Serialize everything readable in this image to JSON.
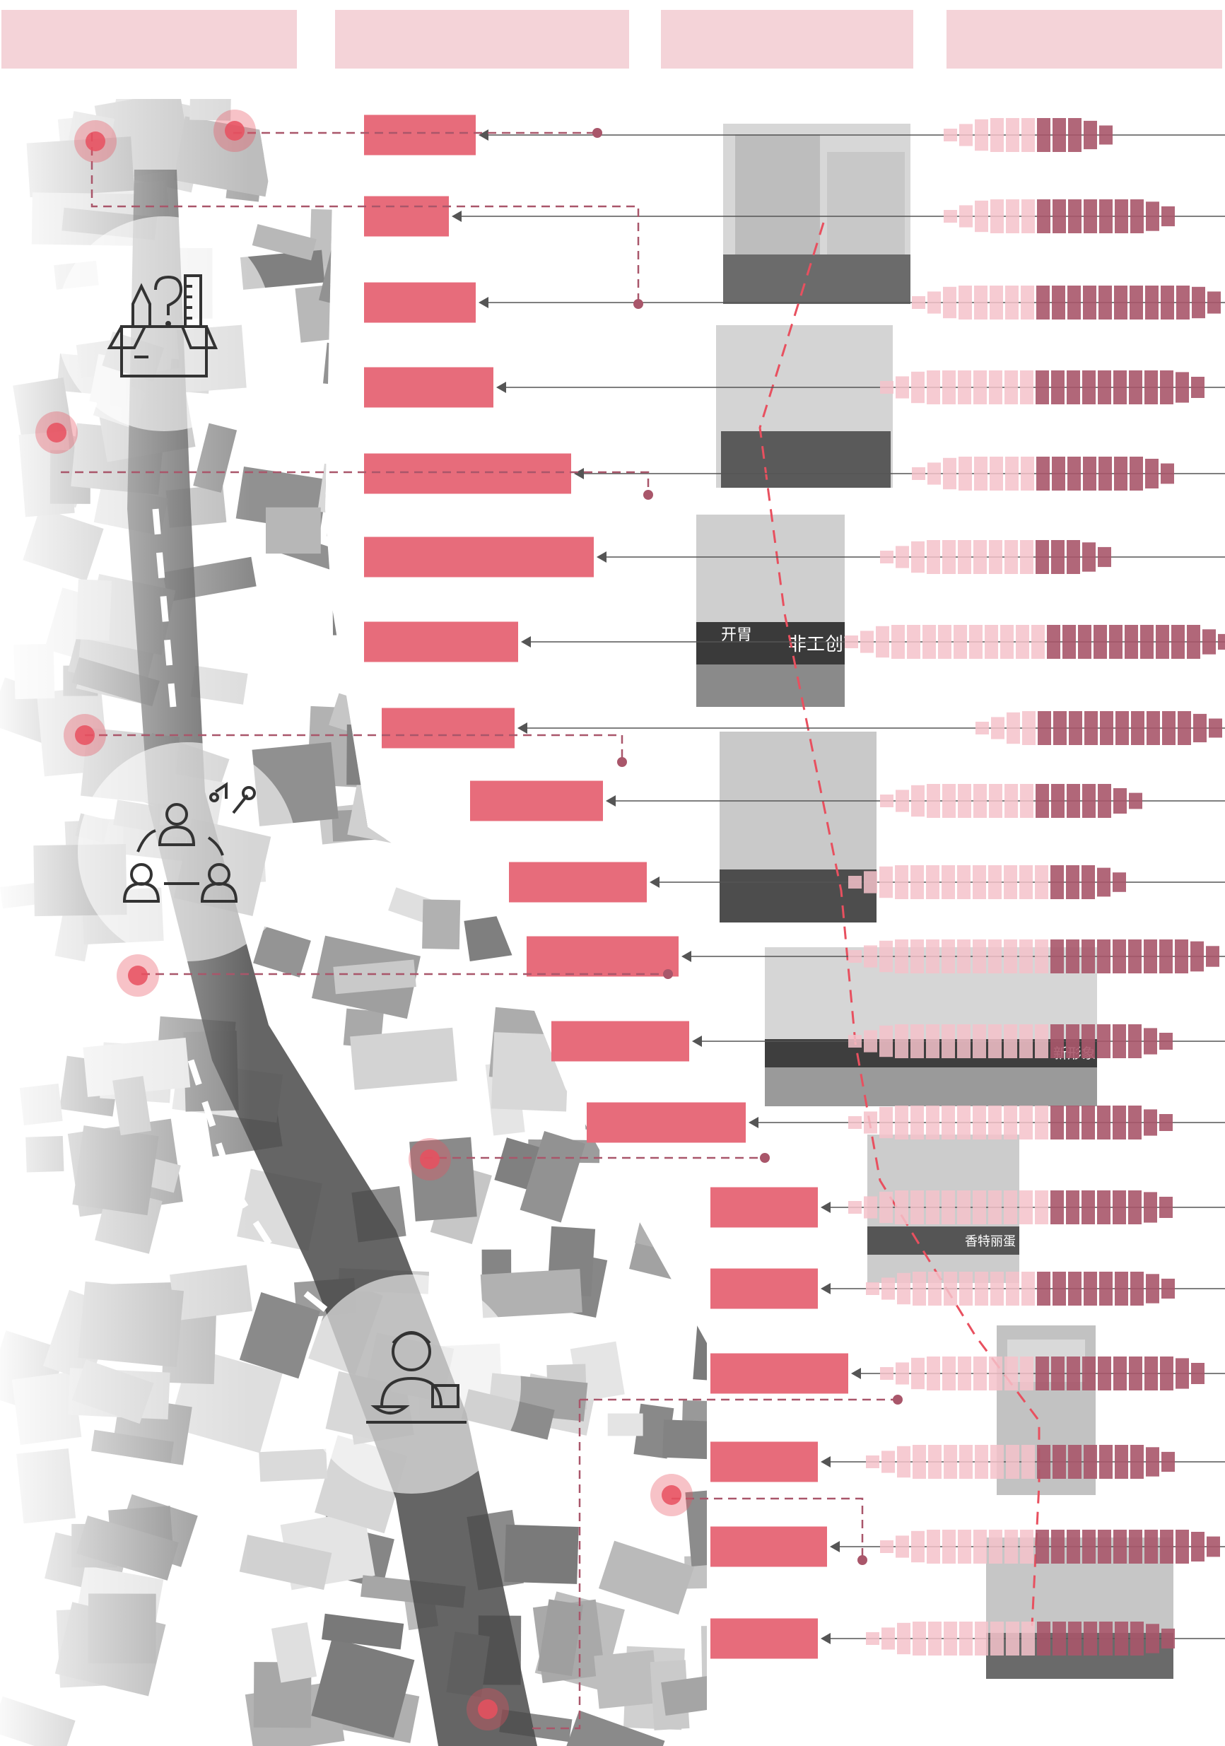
{
  "header_tabs": [
    {
      "label": "",
      "color": "#f4d3d8"
    },
    {
      "label": "",
      "color": "#f4d3d8"
    },
    {
      "label": "",
      "color": "#f4d3d8"
    },
    {
      "label": "",
      "color": "#f4d3d8"
    }
  ],
  "colors": {
    "accent": "#e76c7b",
    "accent_light": "#f4c2ca",
    "accent_dark": "#a9566a",
    "dashed_line": "#a9566a",
    "connector": "#555555",
    "hotspot": "#e8505f",
    "aerial_gray": "#9a9a9a"
  },
  "icons": [
    {
      "name": "tools-box-icon",
      "meaning": "craft supplies"
    },
    {
      "name": "people-exchange-icon",
      "meaning": "social interaction and entertainment"
    },
    {
      "name": "vendor-food-icon",
      "meaning": "food stall"
    }
  ],
  "storefront_signs": [
    "开胃",
    "非工创艺",
    "新形象",
    "香特丽蛋"
  ],
  "rows": 19
}
